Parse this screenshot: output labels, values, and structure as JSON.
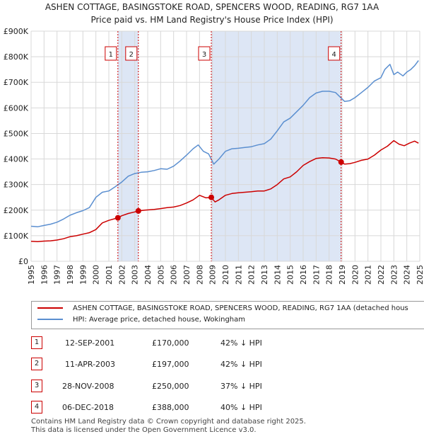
{
  "title_line1": "ASHEN COTTAGE, BASINGSTOKE ROAD, SPENCERS WOOD, READING, RG7 1AA",
  "title_line2": "Price paid vs. HM Land Registry's House Price Index (HPI)",
  "colors": {
    "price_paid": "#cc0000",
    "hpi": "#5b8fd0",
    "shade": "#dde6f5",
    "grid": "#d8d8d8",
    "marker_line": "#cc0000"
  },
  "chart_data": {
    "type": "line",
    "xlim": [
      1995,
      2025
    ],
    "ylim": [
      0,
      900000
    ],
    "y_ticks": [
      0,
      100000,
      200000,
      300000,
      400000,
      500000,
      600000,
      700000,
      800000,
      900000
    ],
    "y_tick_labels": [
      "£0",
      "£100K",
      "£200K",
      "£300K",
      "£400K",
      "£500K",
      "£600K",
      "£700K",
      "£800K",
      "£900K"
    ],
    "x_ticks": [
      1995,
      1996,
      1997,
      1998,
      1999,
      2000,
      2001,
      2002,
      2003,
      2004,
      2005,
      2006,
      2007,
      2008,
      2009,
      2010,
      2011,
      2012,
      2013,
      2014,
      2015,
      2016,
      2017,
      2018,
      2019,
      2020,
      2021,
      2022,
      2023,
      2024,
      2025
    ],
    "shaded_ranges": [
      [
        2001.7,
        2003.28
      ],
      [
        2008.91,
        2018.93
      ]
    ],
    "series": [
      {
        "name": "ASHEN COTTAGE, BASINGSTOKE ROAD, SPENCERS WOOD, READING, RG7 1AA (detached hous",
        "color": "#cc0000",
        "x": [
          1995.0,
          1995.5,
          1996.0,
          1996.5,
          1997.0,
          1997.5,
          1998.0,
          1998.5,
          1999.0,
          1999.5,
          2000.0,
          2000.5,
          2001.0,
          2001.7,
          2002.0,
          2002.5,
          2003.0,
          2003.28,
          2003.8,
          2004.5,
          2005.0,
          2005.5,
          2006.0,
          2006.5,
          2007.0,
          2007.5,
          2008.0,
          2008.5,
          2008.91,
          2009.2,
          2009.5,
          2010.0,
          2010.5,
          2011.0,
          2011.5,
          2012.0,
          2012.5,
          2013.0,
          2013.5,
          2014.0,
          2014.5,
          2015.0,
          2015.5,
          2016.0,
          2016.5,
          2017.0,
          2017.5,
          2018.0,
          2018.5,
          2018.93,
          2019.2,
          2019.6,
          2020.0,
          2020.5,
          2021.0,
          2021.5,
          2022.0,
          2022.5,
          2023.0,
          2023.4,
          2023.8,
          2024.2,
          2024.6,
          2024.9
        ],
        "values": [
          78000,
          77000,
          79000,
          80000,
          83000,
          88000,
          96000,
          100000,
          106000,
          112000,
          124000,
          150000,
          160000,
          170000,
          178000,
          187000,
          193000,
          197000,
          200000,
          203000,
          206000,
          210000,
          212000,
          218000,
          228000,
          240000,
          258000,
          248000,
          250000,
          232000,
          240000,
          258000,
          265000,
          268000,
          270000,
          272000,
          275000,
          275000,
          283000,
          300000,
          322000,
          330000,
          350000,
          375000,
          390000,
          402000,
          405000,
          404000,
          400000,
          388000,
          380000,
          382000,
          387000,
          395000,
          400000,
          415000,
          435000,
          450000,
          472000,
          458000,
          452000,
          462000,
          470000,
          462000
        ]
      },
      {
        "name": "HPI: Average price, detached house, Wokingham",
        "color": "#5b8fd0",
        "x": [
          1995.0,
          1995.5,
          1996.0,
          1996.5,
          1997.0,
          1997.5,
          1998.0,
          1998.5,
          1999.0,
          1999.5,
          2000.0,
          2000.5,
          2001.0,
          2001.5,
          2002.0,
          2002.5,
          2003.0,
          2003.5,
          2004.0,
          2004.5,
          2005.0,
          2005.5,
          2006.0,
          2006.5,
          2007.0,
          2007.5,
          2007.9,
          2008.3,
          2008.7,
          2009.1,
          2009.5,
          2010.0,
          2010.5,
          2011.0,
          2011.5,
          2012.0,
          2012.5,
          2013.0,
          2013.5,
          2014.0,
          2014.5,
          2015.0,
          2015.5,
          2016.0,
          2016.5,
          2017.0,
          2017.5,
          2018.0,
          2018.5,
          2018.9,
          2019.2,
          2019.6,
          2020.0,
          2020.5,
          2021.0,
          2021.5,
          2022.0,
          2022.3,
          2022.7,
          2023.0,
          2023.3,
          2023.7,
          2024.0,
          2024.3,
          2024.6,
          2024.9
        ],
        "values": [
          137000,
          135000,
          140000,
          145000,
          153000,
          165000,
          180000,
          190000,
          198000,
          210000,
          250000,
          270000,
          275000,
          292000,
          310000,
          333000,
          343000,
          348000,
          350000,
          355000,
          362000,
          360000,
          372000,
          392000,
          415000,
          440000,
          455000,
          430000,
          420000,
          380000,
          400000,
          430000,
          440000,
          442000,
          445000,
          448000,
          455000,
          460000,
          478000,
          510000,
          545000,
          560000,
          585000,
          610000,
          640000,
          658000,
          665000,
          665000,
          660000,
          640000,
          625000,
          628000,
          640000,
          660000,
          680000,
          705000,
          718000,
          750000,
          770000,
          730000,
          740000,
          725000,
          740000,
          750000,
          765000,
          785000
        ]
      }
    ],
    "sales": [
      {
        "num": "1",
        "x": 2001.7,
        "value": 170000
      },
      {
        "num": "2",
        "x": 2003.28,
        "value": 197000
      },
      {
        "num": "3",
        "x": 2008.91,
        "value": 250000
      },
      {
        "num": "4",
        "x": 2018.93,
        "value": 388000
      }
    ]
  },
  "legend": {
    "item1": "ASHEN COTTAGE, BASINGSTOKE ROAD, SPENCERS WOOD, READING, RG7 1AA (detached hous",
    "item2": "HPI: Average price, detached house, Wokingham"
  },
  "sales_table": [
    {
      "num": "1",
      "date": "12-SEP-2001",
      "price": "£170,000",
      "delta": "42% ↓ HPI"
    },
    {
      "num": "2",
      "date": "11-APR-2003",
      "price": "£197,000",
      "delta": "42% ↓ HPI"
    },
    {
      "num": "3",
      "date": "28-NOV-2008",
      "price": "£250,000",
      "delta": "37% ↓ HPI"
    },
    {
      "num": "4",
      "date": "06-DEC-2018",
      "price": "£388,000",
      "delta": "40% ↓ HPI"
    }
  ],
  "footer": {
    "line1": "Contains HM Land Registry data © Crown copyright and database right 2025.",
    "line2": "This data is licensed under the Open Government Licence v3.0."
  }
}
